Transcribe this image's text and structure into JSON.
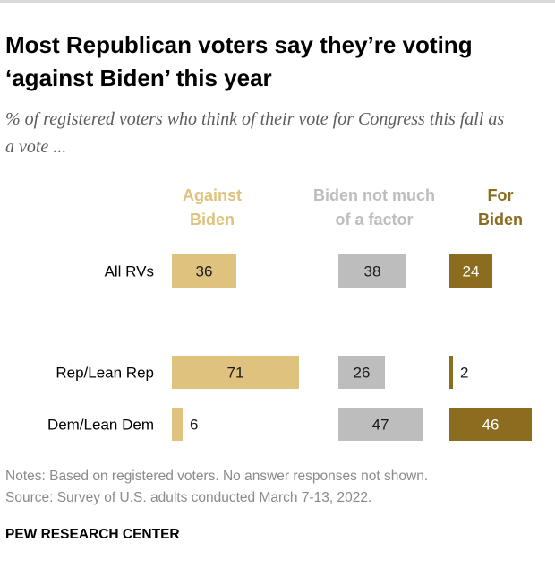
{
  "header": {
    "title": "Most Republican voters say they’re voting ‘against Biden’ this year",
    "subtitle": "% of registered voters who think of their vote for Congress this fall as a vote ..."
  },
  "chart_data": {
    "type": "bar",
    "title": "Most Republican voters say they’re voting ‘against Biden’ this year",
    "subtitle": "% of registered voters who think of their vote for Congress this fall as a vote ...",
    "categories": [
      "All RVs",
      "Rep/Lean Rep",
      "Dem/Lean Dem"
    ],
    "series": [
      {
        "name": "Against Biden",
        "head_lines": [
          "Against",
          "Biden"
        ],
        "values": [
          36,
          71,
          6
        ],
        "color": "#dec27e",
        "text_color": "#1a1a1a"
      },
      {
        "name": "Biden not much of a factor",
        "head_lines": [
          "Biden not much",
          "of a factor"
        ],
        "values": [
          38,
          26,
          47
        ],
        "color": "#bdbdbd",
        "text_color": "#1a1a1a"
      },
      {
        "name": "For Biden",
        "head_lines": [
          "For",
          "Biden"
        ],
        "values": [
          24,
          2,
          46
        ],
        "color": "#8c6d1f",
        "text_color": "#ffffff"
      }
    ],
    "header_colors": [
      "#dec27e",
      "#bdbdbd",
      "#8c6d1f"
    ],
    "xlabel": "",
    "ylabel": "",
    "xlim": [
      0,
      100
    ],
    "grid": false,
    "legend": "column headers above bars"
  },
  "footer": {
    "notes": "Notes: Based on registered voters. No answer responses not shown.",
    "source": "Source: Survey of U.S. adults conducted March 7-13, 2022.",
    "brand": "PEW RESEARCH CENTER"
  }
}
